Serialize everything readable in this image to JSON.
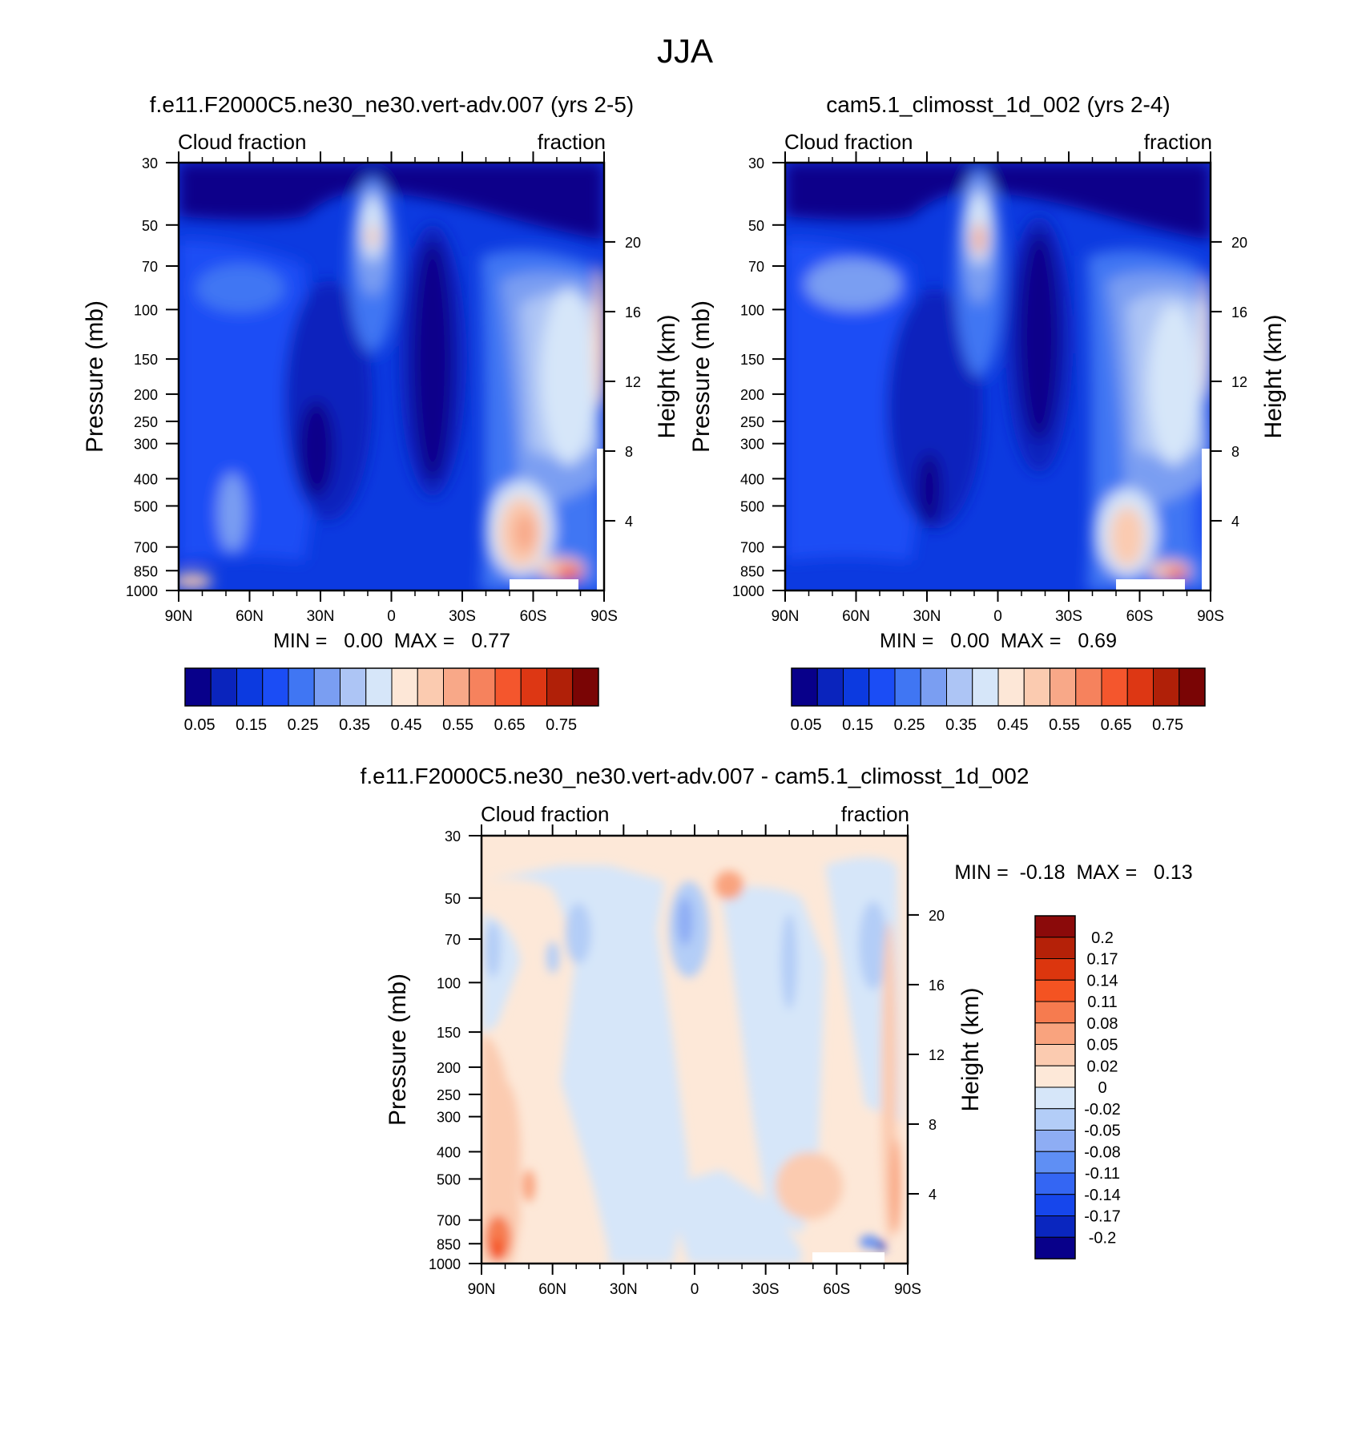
{
  "figure_title": "JJA",
  "chart_data": [
    {
      "type": "heatmap",
      "title": "f.e11.F2000C5.ne30_ne30.vert-adv.007 (yrs 2-5)",
      "left_string": "Cloud fraction",
      "right_string": "fraction",
      "ylabel": "Pressure (mb)",
      "y2label": "Height (km)",
      "x_ticks": [
        "90N",
        "60N",
        "30N",
        "0",
        "30S",
        "60S",
        "90S"
      ],
      "x_range": [
        90,
        -90
      ],
      "y_range": [
        1000,
        30
      ],
      "y_scale": "log",
      "y_ticks": [
        30,
        50,
        70,
        100,
        150,
        200,
        250,
        300,
        400,
        500,
        700,
        850,
        1000
      ],
      "y2_ticks": [
        20,
        16,
        12,
        8,
        4
      ],
      "stats": "MIN =   0.00  MAX =   0.77",
      "colorbar": {
        "orientation": "horizontal",
        "labels": [
          "0.05",
          "0.15",
          "0.25",
          "0.35",
          "0.45",
          "0.55",
          "0.65",
          "0.75"
        ],
        "colors": [
          "#08008a",
          "#0a24bd",
          "#0c3ae0",
          "#1b4df5",
          "#4076f3",
          "#7a9ef2",
          "#adc5f5",
          "#d6e6f9",
          "#fde7d7",
          "#fbcbb0",
          "#f8a888",
          "#f6825d",
          "#f4562d",
          "#dd3714",
          "#b02008",
          "#7a0505"
        ]
      }
    },
    {
      "type": "heatmap",
      "title": "cam5.1_climosst_1d_002 (yrs 2-4)",
      "left_string": "Cloud fraction",
      "right_string": "fraction",
      "ylabel": "Pressure (mb)",
      "y2label": "Height (km)",
      "x_ticks": [
        "90N",
        "60N",
        "30N",
        "0",
        "30S",
        "60S",
        "90S"
      ],
      "x_range": [
        90,
        -90
      ],
      "y_range": [
        1000,
        30
      ],
      "y_scale": "log",
      "y_ticks": [
        30,
        50,
        70,
        100,
        150,
        200,
        250,
        300,
        400,
        500,
        700,
        850,
        1000
      ],
      "y2_ticks": [
        20,
        16,
        12,
        8,
        4
      ],
      "stats": "MIN =   0.00  MAX =   0.69",
      "colorbar": {
        "orientation": "horizontal",
        "labels": [
          "0.05",
          "0.15",
          "0.25",
          "0.35",
          "0.45",
          "0.55",
          "0.65",
          "0.75"
        ],
        "colors": [
          "#08008a",
          "#0a24bd",
          "#0c3ae0",
          "#1b4df5",
          "#4076f3",
          "#7a9ef2",
          "#adc5f5",
          "#d6e6f9",
          "#fde7d7",
          "#fbcbb0",
          "#f8a888",
          "#f6825d",
          "#f4562d",
          "#dd3714",
          "#b02008",
          "#7a0505"
        ]
      }
    },
    {
      "type": "heatmap",
      "title": "f.e11.F2000C5.ne30_ne30.vert-adv.007 - cam5.1_climosst_1d_002",
      "left_string": "Cloud fraction",
      "right_string": "fraction",
      "ylabel": "Pressure (mb)",
      "y2label": "Height (km)",
      "x_ticks": [
        "90N",
        "60N",
        "30N",
        "0",
        "30S",
        "60S",
        "90S"
      ],
      "x_range": [
        90,
        -90
      ],
      "y_range": [
        1000,
        30
      ],
      "y_scale": "log",
      "y_ticks": [
        30,
        50,
        70,
        100,
        150,
        200,
        250,
        300,
        400,
        500,
        700,
        850,
        1000
      ],
      "y2_ticks": [
        20,
        16,
        12,
        8,
        4
      ],
      "stats": "MIN =  -0.18  MAX =   0.13",
      "colorbar": {
        "orientation": "vertical",
        "labels": [
          "0.2",
          "0.17",
          "0.14",
          "0.11",
          "0.08",
          "0.05",
          "0.02",
          "0",
          "-0.02",
          "-0.05",
          "-0.08",
          "-0.11",
          "-0.14",
          "-0.17",
          "-0.2"
        ],
        "colors": [
          "#8b0a0a",
          "#b52108",
          "#dc360e",
          "#f45322",
          "#f67b4f",
          "#f9a37e",
          "#fbcbb0",
          "#fde8d8",
          "#d6e6f9",
          "#b3cdf7",
          "#8eadf4",
          "#5f8ff4",
          "#3466f3",
          "#1646ec",
          "#0a26bf",
          "#08008a"
        ]
      }
    }
  ]
}
